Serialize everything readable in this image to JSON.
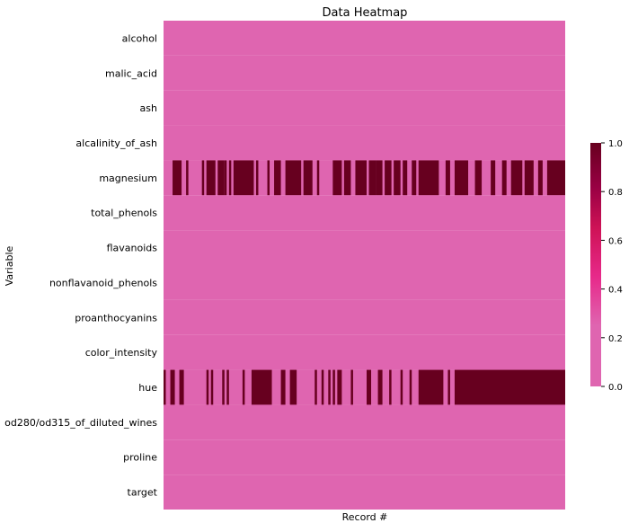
{
  "chart_data": {
    "type": "heatmap",
    "title": "Data Heatmap",
    "xlabel": "Record #",
    "ylabel": "Variable",
    "variables": [
      "alcohol",
      "malic_acid",
      "ash",
      "alcalinity_of_ash",
      "magnesium",
      "total_phenols",
      "flavanoids",
      "nonflavanoid_phenols",
      "proanthocyanins",
      "color_intensity",
      "hue",
      "od280/od315_of_diluted_wines",
      "proline",
      "target"
    ],
    "record_count": 178,
    "value_range": [
      0.0,
      1.0
    ],
    "description_of_values": "0 = value present, 1 = value missing; only 'magnesium' and 'hue' rows contain 1s",
    "highlighted_records": {
      "magnesium": [
        [
          4,
          7
        ],
        [
          10,
          10
        ],
        [
          17,
          17
        ],
        [
          19,
          22
        ],
        [
          24,
          26
        ],
        [
          27,
          27
        ],
        [
          29,
          29
        ],
        [
          31,
          39
        ],
        [
          41,
          41
        ],
        [
          46,
          46
        ],
        [
          49,
          51
        ],
        [
          54,
          60
        ],
        [
          62,
          65
        ],
        [
          68,
          68
        ],
        [
          75,
          78
        ],
        [
          80,
          82
        ],
        [
          85,
          89
        ],
        [
          91,
          93
        ],
        [
          94,
          96
        ],
        [
          98,
          100
        ],
        [
          102,
          104
        ],
        [
          106,
          107
        ],
        [
          110,
          111
        ],
        [
          113,
          121
        ],
        [
          125,
          126
        ],
        [
          129,
          134
        ],
        [
          138,
          140
        ],
        [
          145,
          146
        ],
        [
          150,
          151
        ],
        [
          154,
          158
        ],
        [
          160,
          163
        ],
        [
          166,
          167
        ],
        [
          170,
          177
        ]
      ],
      "hue": [
        [
          0,
          0
        ],
        [
          3,
          4
        ],
        [
          7,
          8
        ],
        [
          19,
          19
        ],
        [
          21,
          21
        ],
        [
          26,
          26
        ],
        [
          28,
          28
        ],
        [
          35,
          35
        ],
        [
          39,
          47
        ],
        [
          52,
          53
        ],
        [
          56,
          58
        ],
        [
          67,
          67
        ],
        [
          70,
          70
        ],
        [
          73,
          73
        ],
        [
          75,
          75
        ],
        [
          77,
          78
        ],
        [
          83,
          83
        ],
        [
          90,
          91
        ],
        [
          95,
          96
        ],
        [
          100,
          100
        ],
        [
          105,
          105
        ],
        [
          109,
          109
        ],
        [
          113,
          123
        ],
        [
          126,
          126
        ],
        [
          129,
          177
        ]
      ]
    },
    "colorbar": {
      "ticks": [
        "0.0",
        "0.2",
        "0.4",
        "0.6",
        "0.8",
        "1.0"
      ],
      "colors": {
        "low": "#df65b0",
        "mid": "#e7298a",
        "high": "#67001f"
      }
    }
  },
  "colors": {
    "cell_zero": "#df65b0",
    "cell_one": "#67001f"
  }
}
